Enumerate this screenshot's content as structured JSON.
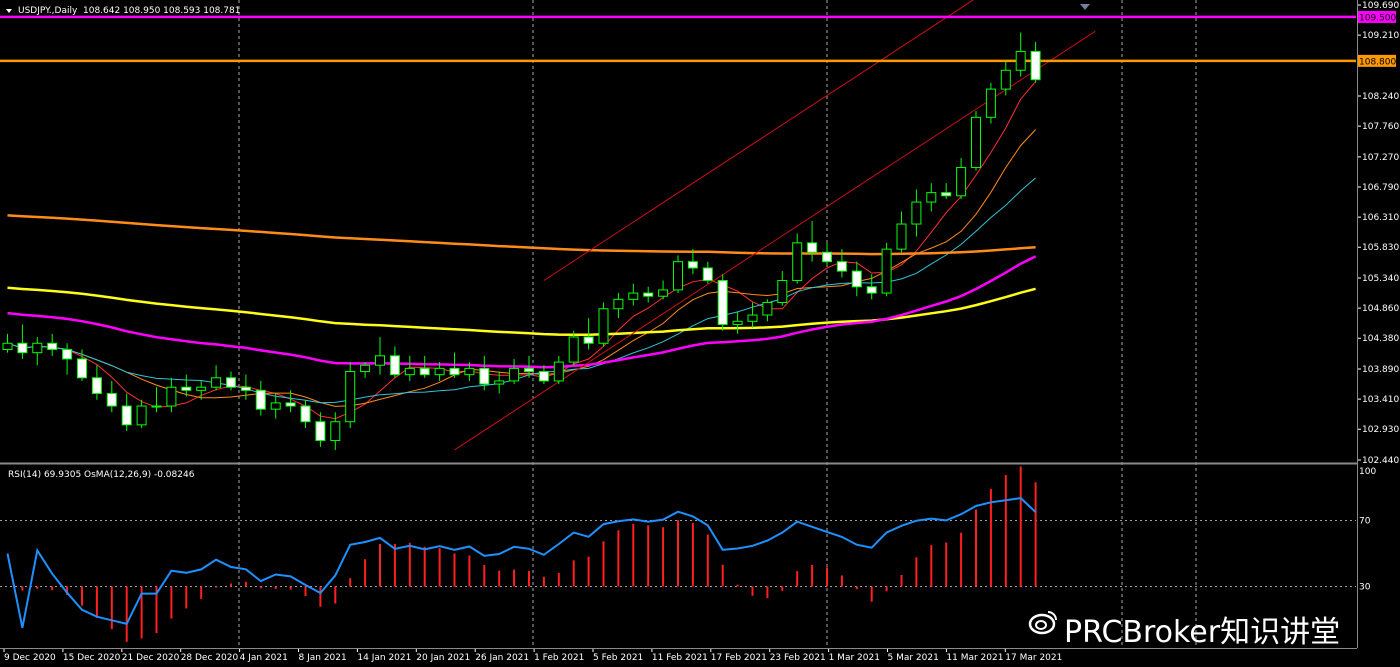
{
  "header": {
    "symbol": "USDJPY.,Daily",
    "ohlc": "108.642 108.950 108.593 108.781"
  },
  "indicator_header": "RSI(14) 69.9305  OsMA(12,26,9) -0.08246",
  "watermark": "PRCBroker知识讲堂",
  "colors": {
    "background": "#000000",
    "grid": "#c8c8c8",
    "candle_up": "#000000",
    "candle_down": "#ffffff",
    "wick": "#00ff00",
    "ma_fast": "#ff3030",
    "ma_mid": "#ff8c1a",
    "ma_slow": "#2fc6d8",
    "ma_50": "#ff00ff",
    "ma_100": "#ffff1a",
    "ma_200": "#ff8c1a",
    "channel": "#cc1010",
    "hline_magenta": "#ff00ff",
    "hline_orange": "#ff9900",
    "rsi": "#1e90ff",
    "osma": "#ff2020"
  },
  "chart_data": [
    {
      "type": "candlestick",
      "title": "USDJPY.,Daily",
      "ylim": [
        102.44,
        109.69
      ],
      "y_ticks": [
        102.44,
        102.93,
        103.41,
        103.89,
        104.38,
        104.86,
        105.34,
        105.83,
        106.31,
        106.79,
        107.27,
        107.76,
        108.24,
        108.8,
        109.21,
        109.5,
        109.69
      ],
      "y_tick_labels": [
        "102.440",
        "102.930",
        "103.410",
        "103.890",
        "104.380",
        "104.860",
        "105.340",
        "105.830",
        "106.310",
        "106.790",
        "107.270",
        "107.760",
        "108.240",
        "108.800",
        "109.210",
        "109.500",
        "109.690"
      ],
      "highlight_levels": [
        {
          "value": 109.5,
          "label": "109.500",
          "color": "#ff00ff"
        },
        {
          "value": 108.8,
          "label": "108.800",
          "color": "#ff9900"
        }
      ],
      "x_labels": [
        "9 Dec 2020",
        "15 Dec 2020",
        "21 Dec 2020",
        "28 Dec 2020",
        "4 Jan 2021",
        "8 Jan 2021",
        "14 Jan 2021",
        "20 Jan 2021",
        "26 Jan 2021",
        "1 Feb 2021",
        "5 Feb 2021",
        "11 Feb 2021",
        "17 Feb 2021",
        "23 Feb 2021",
        "1 Mar 2021",
        "5 Mar 2021",
        "11 Mar 2021",
        "17 Mar 2021"
      ],
      "x_label_index": [
        0,
        4,
        8,
        12,
        16,
        20,
        24,
        28,
        32,
        36,
        40,
        44,
        48,
        52,
        56,
        60,
        64,
        68
      ],
      "candles": [
        [
          104.2,
          104.45,
          104.15,
          104.3
        ],
        [
          104.3,
          104.6,
          104.05,
          104.15
        ],
        [
          104.15,
          104.4,
          103.95,
          104.3
        ],
        [
          104.3,
          104.45,
          104.1,
          104.2
        ],
        [
          104.2,
          104.3,
          103.8,
          104.05
        ],
        [
          104.05,
          104.2,
          103.7,
          103.75
        ],
        [
          103.75,
          103.95,
          103.4,
          103.5
        ],
        [
          103.5,
          103.7,
          103.2,
          103.3
        ],
        [
          103.3,
          103.5,
          102.9,
          103.0
        ],
        [
          103.0,
          103.4,
          102.95,
          103.3
        ],
        [
          103.3,
          103.6,
          103.2,
          103.3
        ],
        [
          103.3,
          103.75,
          103.2,
          103.6
        ],
        [
          103.6,
          103.8,
          103.45,
          103.55
        ],
        [
          103.55,
          103.7,
          103.4,
          103.6
        ],
        [
          103.6,
          103.95,
          103.55,
          103.75
        ],
        [
          103.75,
          103.85,
          103.55,
          103.6
        ],
        [
          103.6,
          103.8,
          103.4,
          103.55
        ],
        [
          103.55,
          103.7,
          103.15,
          103.25
        ],
        [
          103.25,
          103.5,
          103.1,
          103.35
        ],
        [
          103.35,
          103.55,
          103.2,
          103.3
        ],
        [
          103.3,
          103.4,
          102.95,
          103.05
        ],
        [
          103.05,
          103.2,
          102.65,
          102.75
        ],
        [
          102.75,
          103.2,
          102.6,
          103.05
        ],
        [
          103.05,
          104.0,
          102.95,
          103.85
        ],
        [
          103.85,
          104.0,
          103.75,
          103.95
        ],
        [
          103.95,
          104.4,
          103.8,
          104.1
        ],
        [
          104.1,
          104.25,
          103.75,
          103.8
        ],
        [
          103.8,
          104.1,
          103.7,
          103.9
        ],
        [
          103.9,
          104.1,
          103.75,
          103.8
        ],
        [
          103.8,
          104.0,
          103.7,
          103.9
        ],
        [
          103.9,
          104.15,
          103.75,
          103.8
        ],
        [
          103.8,
          104.0,
          103.7,
          103.9
        ],
        [
          103.9,
          104.1,
          103.55,
          103.65
        ],
        [
          103.65,
          103.85,
          103.5,
          103.7
        ],
        [
          103.7,
          104.05,
          103.65,
          103.9
        ],
        [
          103.9,
          104.1,
          103.75,
          103.85
        ],
        [
          103.85,
          103.95,
          103.65,
          103.7
        ],
        [
          103.7,
          104.1,
          103.65,
          104.0
        ],
        [
          104.0,
          104.5,
          103.95,
          104.4
        ],
        [
          104.4,
          104.7,
          104.2,
          104.3
        ],
        [
          104.3,
          104.95,
          104.25,
          104.85
        ],
        [
          104.85,
          105.1,
          104.7,
          105.0
        ],
        [
          105.0,
          105.25,
          104.9,
          105.1
        ],
        [
          105.1,
          105.2,
          104.95,
          105.05
        ],
        [
          105.05,
          105.3,
          105.0,
          105.15
        ],
        [
          105.15,
          105.7,
          105.1,
          105.6
        ],
        [
          105.6,
          105.8,
          105.4,
          105.5
        ],
        [
          105.5,
          105.6,
          105.25,
          105.3
        ],
        [
          105.3,
          105.4,
          104.5,
          104.6
        ],
        [
          104.6,
          104.8,
          104.45,
          104.65
        ],
        [
          104.65,
          104.95,
          104.55,
          104.75
        ],
        [
          104.75,
          105.0,
          104.65,
          104.95
        ],
        [
          104.95,
          105.45,
          104.9,
          105.3
        ],
        [
          105.3,
          106.05,
          105.25,
          105.9
        ],
        [
          105.9,
          106.25,
          105.6,
          105.75
        ],
        [
          105.75,
          105.9,
          105.55,
          105.6
        ],
        [
          105.6,
          105.8,
          105.35,
          105.45
        ],
        [
          105.45,
          105.6,
          105.05,
          105.2
        ],
        [
          105.2,
          105.4,
          105.0,
          105.1
        ],
        [
          105.1,
          105.9,
          105.05,
          105.8
        ],
        [
          105.8,
          106.4,
          105.75,
          106.2
        ],
        [
          106.2,
          106.75,
          106.0,
          106.55
        ],
        [
          106.55,
          106.85,
          106.4,
          106.7
        ],
        [
          106.7,
          106.85,
          106.6,
          106.65
        ],
        [
          106.65,
          107.25,
          106.6,
          107.1
        ],
        [
          107.1,
          108.0,
          107.05,
          107.9
        ],
        [
          107.9,
          108.45,
          107.8,
          108.35
        ],
        [
          108.35,
          108.8,
          108.25,
          108.65
        ],
        [
          108.65,
          109.25,
          108.55,
          108.95
        ],
        [
          108.95,
          109.1,
          108.45,
          108.5
        ]
      ]
    },
    {
      "type": "line",
      "title": "RSI(14) 69.9305  OsMA(12,26,9) -0.08246",
      "ylim": [
        0,
        100
      ],
      "y_ticks": [
        100,
        70,
        30
      ],
      "y_tick_labels": [
        "100",
        "70",
        "30"
      ]
    }
  ]
}
